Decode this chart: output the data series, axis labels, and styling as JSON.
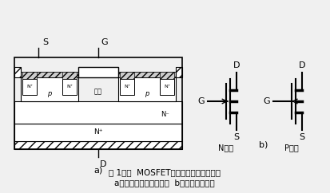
{
  "bg_color": "#f0f0f0",
  "title_line1": "图 1功率  MOSFET的结构和电气图形符号",
  "title_line2": "a）内部结构断面示意图  b）电气图形符号",
  "label_a": "a)",
  "label_b": "b)",
  "label_N": "N沟道",
  "label_P": "P沟道"
}
